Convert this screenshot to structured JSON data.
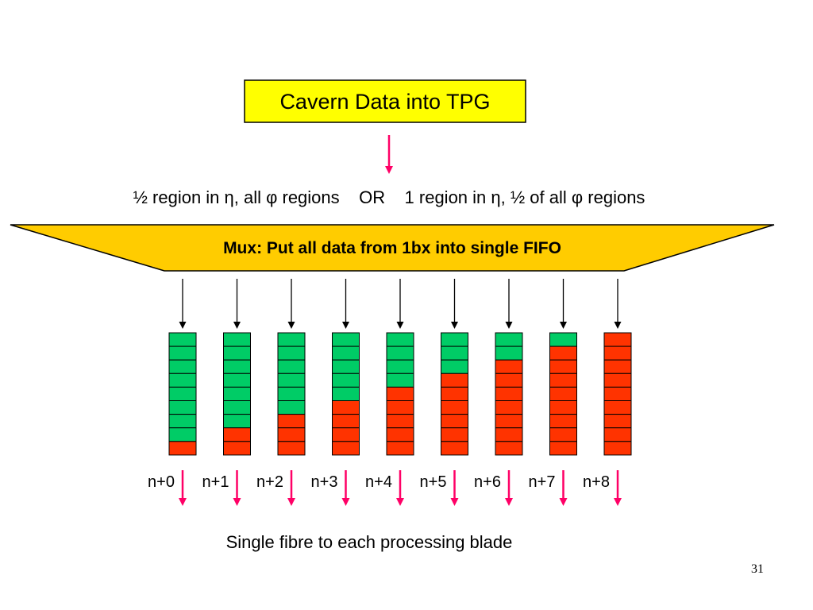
{
  "slide": {
    "title": "Cavern Data into TPG",
    "region_line": "½ region in η, all φ regions    OR    1 region in η, ½ of all φ regions",
    "mux_label": "Mux: Put all data from 1bx into single FIFO",
    "footer": "Single fibre to each processing blade",
    "page_number": "31"
  },
  "fifos": [
    {
      "label": "n+0",
      "green_cells": 8,
      "total_cells": 9
    },
    {
      "label": "n+1",
      "green_cells": 7,
      "total_cells": 9
    },
    {
      "label": "n+2",
      "green_cells": 6,
      "total_cells": 9
    },
    {
      "label": "n+3",
      "green_cells": 5,
      "total_cells": 9
    },
    {
      "label": "n+4",
      "green_cells": 4,
      "total_cells": 9
    },
    {
      "label": "n+5",
      "green_cells": 3,
      "total_cells": 9
    },
    {
      "label": "n+6",
      "green_cells": 2,
      "total_cells": 9
    },
    {
      "label": "n+7",
      "green_cells": 1,
      "total_cells": 9
    },
    {
      "label": "n+8",
      "green_cells": 0,
      "total_cells": 9
    }
  ],
  "colors": {
    "title_box": "#ffff00",
    "mux_fill": "#ffcc00",
    "green": "#00cc66",
    "red": "#ff3300",
    "arrow_pink": "#ff0066"
  }
}
